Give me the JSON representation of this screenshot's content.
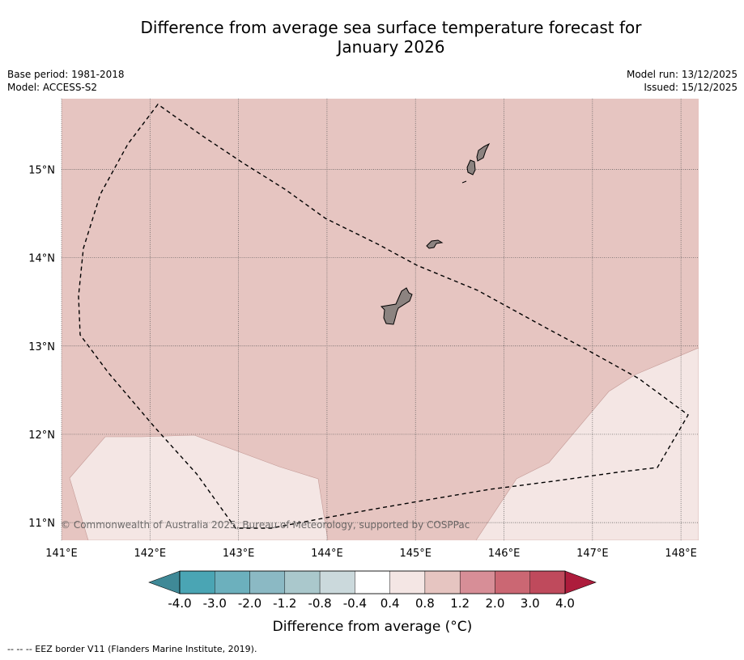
{
  "title": {
    "line1": "Difference from average sea surface temperature forecast for",
    "line2": "January 2026"
  },
  "meta": {
    "base_period": "Base period: 1981-2018",
    "model": "Model: ACCESS-S2",
    "model_run": "Model run: 13/12/2025",
    "issued": "Issued: 15/12/2025"
  },
  "map": {
    "lon_ticks": [
      "141°E",
      "142°E",
      "143°E",
      "144°E",
      "145°E",
      "146°E",
      "147°E",
      "148°E"
    ],
    "lat_ticks": [
      "15°N",
      "14°N",
      "13°N",
      "12°N",
      "11°N"
    ],
    "lon_range": [
      141.0,
      148.2
    ],
    "lat_range": [
      10.8,
      15.8
    ],
    "copyright": "© Commonwealth of Australia 2025, Bureau of Meteorology, supported by COSPPac",
    "dominant_anomaly_band": "0.8 to 1.2",
    "secondary_anomaly_band": "0.4 to 0.8",
    "land_color": "#888888",
    "eez_line_style": "dashed"
  },
  "colorbar": {
    "label": "Difference from average (°C)",
    "tick_labels": [
      "-4.0",
      "-3.0",
      "-2.0",
      "-1.2",
      "-0.8",
      "-0.4",
      "0.4",
      "0.8",
      "1.2",
      "2.0",
      "3.0",
      "4.0"
    ],
    "colors": [
      "#4aa5b4",
      "#6cb0bd",
      "#8bb9c4",
      "#aac8cc",
      "#cbd9dc",
      "#ffffff",
      "#f4e6e4",
      "#e6c5c1",
      "#d78e97",
      "#cb6773",
      "#bf4a5c"
    ],
    "under_color": "#3f8997",
    "over_color": "#ad1c3c"
  },
  "footer": {
    "legend_line": "--  --  -- EEZ border V11 (Flanders Marine Institute, 2019)."
  }
}
